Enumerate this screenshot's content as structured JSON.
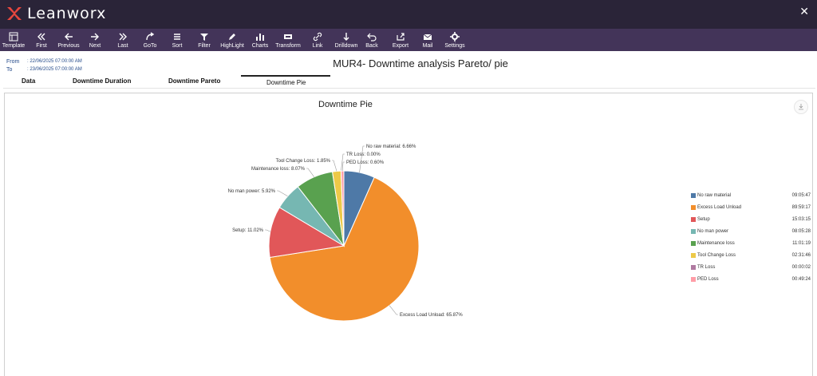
{
  "app": {
    "logo": "Leanworx"
  },
  "toolbar": [
    {
      "label": "Template",
      "icon": "template-icon"
    },
    {
      "label": "First",
      "icon": "first-icon"
    },
    {
      "label": "Previous",
      "icon": "previous-icon"
    },
    {
      "label": "Next",
      "icon": "next-icon"
    },
    {
      "label": "Last",
      "icon": "last-icon"
    },
    {
      "label": "GoTo",
      "icon": "goto-icon"
    },
    {
      "label": "Sort",
      "icon": "sort-icon"
    },
    {
      "label": "Filter",
      "icon": "filter-icon"
    },
    {
      "label": "HighLight",
      "icon": "highlight-icon"
    },
    {
      "label": "Charts",
      "icon": "charts-icon"
    },
    {
      "label": "Transform",
      "icon": "transform-icon"
    },
    {
      "label": "Link",
      "icon": "link-icon"
    },
    {
      "label": "Drilldown",
      "icon": "drilldown-icon"
    },
    {
      "label": "Back",
      "icon": "back-icon"
    },
    {
      "label": "Export",
      "icon": "export-icon"
    },
    {
      "label": "Mail",
      "icon": "mail-icon"
    },
    {
      "label": "Settings",
      "icon": "settings-icon"
    }
  ],
  "report": {
    "from_label": "From",
    "from_value": ": 22/06/2025 07:00:00 AM",
    "to_label": "To",
    "to_value": ": 23/06/2025 07:00:00 AM",
    "title": "MUR4- Downtime analysis Pareto/ pie"
  },
  "tabs": [
    {
      "label": "Data"
    },
    {
      "label": "Downtime Duration"
    },
    {
      "label": "Downtime Pareto"
    },
    {
      "label": "Downtime Pie"
    }
  ],
  "active_tab": "Downtime Pie",
  "chart_data": {
    "type": "pie",
    "title": "Downtime Pie",
    "legend_position": "right",
    "slices": [
      {
        "name": "No raw material",
        "percent": 6.66,
        "label": "No raw material: 6.66%",
        "duration": "09:05:47",
        "color": "#4e79a7"
      },
      {
        "name": "Excess Load Unload",
        "percent": 65.87,
        "label": "Excess Load Unload: 65.87%",
        "duration": "89:59:17",
        "color": "#f28e2b"
      },
      {
        "name": "Setup",
        "percent": 11.02,
        "label": "Setup: 11.02%",
        "duration": "15:03:15",
        "color": "#e15759"
      },
      {
        "name": "No man power",
        "percent": 5.92,
        "label": "No man power: 5.92%",
        "duration": "08:05:28",
        "color": "#76b7b2"
      },
      {
        "name": "Maintenance loss",
        "percent": 8.07,
        "label": "Maintenance loss: 8.07%",
        "duration": "11:01:19",
        "color": "#59a14f"
      },
      {
        "name": "Tool Change Loss",
        "percent": 1.85,
        "label": "Tool Change Loss: 1.85%",
        "duration": "02:31:46",
        "color": "#edc948"
      },
      {
        "name": "TR Loss",
        "percent": 0.0,
        "label": "TR Loss: 0.00%",
        "duration": "00:00:02",
        "color": "#b07aa1"
      },
      {
        "name": "PED Loss",
        "percent": 0.6,
        "label": "PED Loss: 0.60%",
        "duration": "00:49:24",
        "color": "#ff9da7"
      }
    ]
  }
}
